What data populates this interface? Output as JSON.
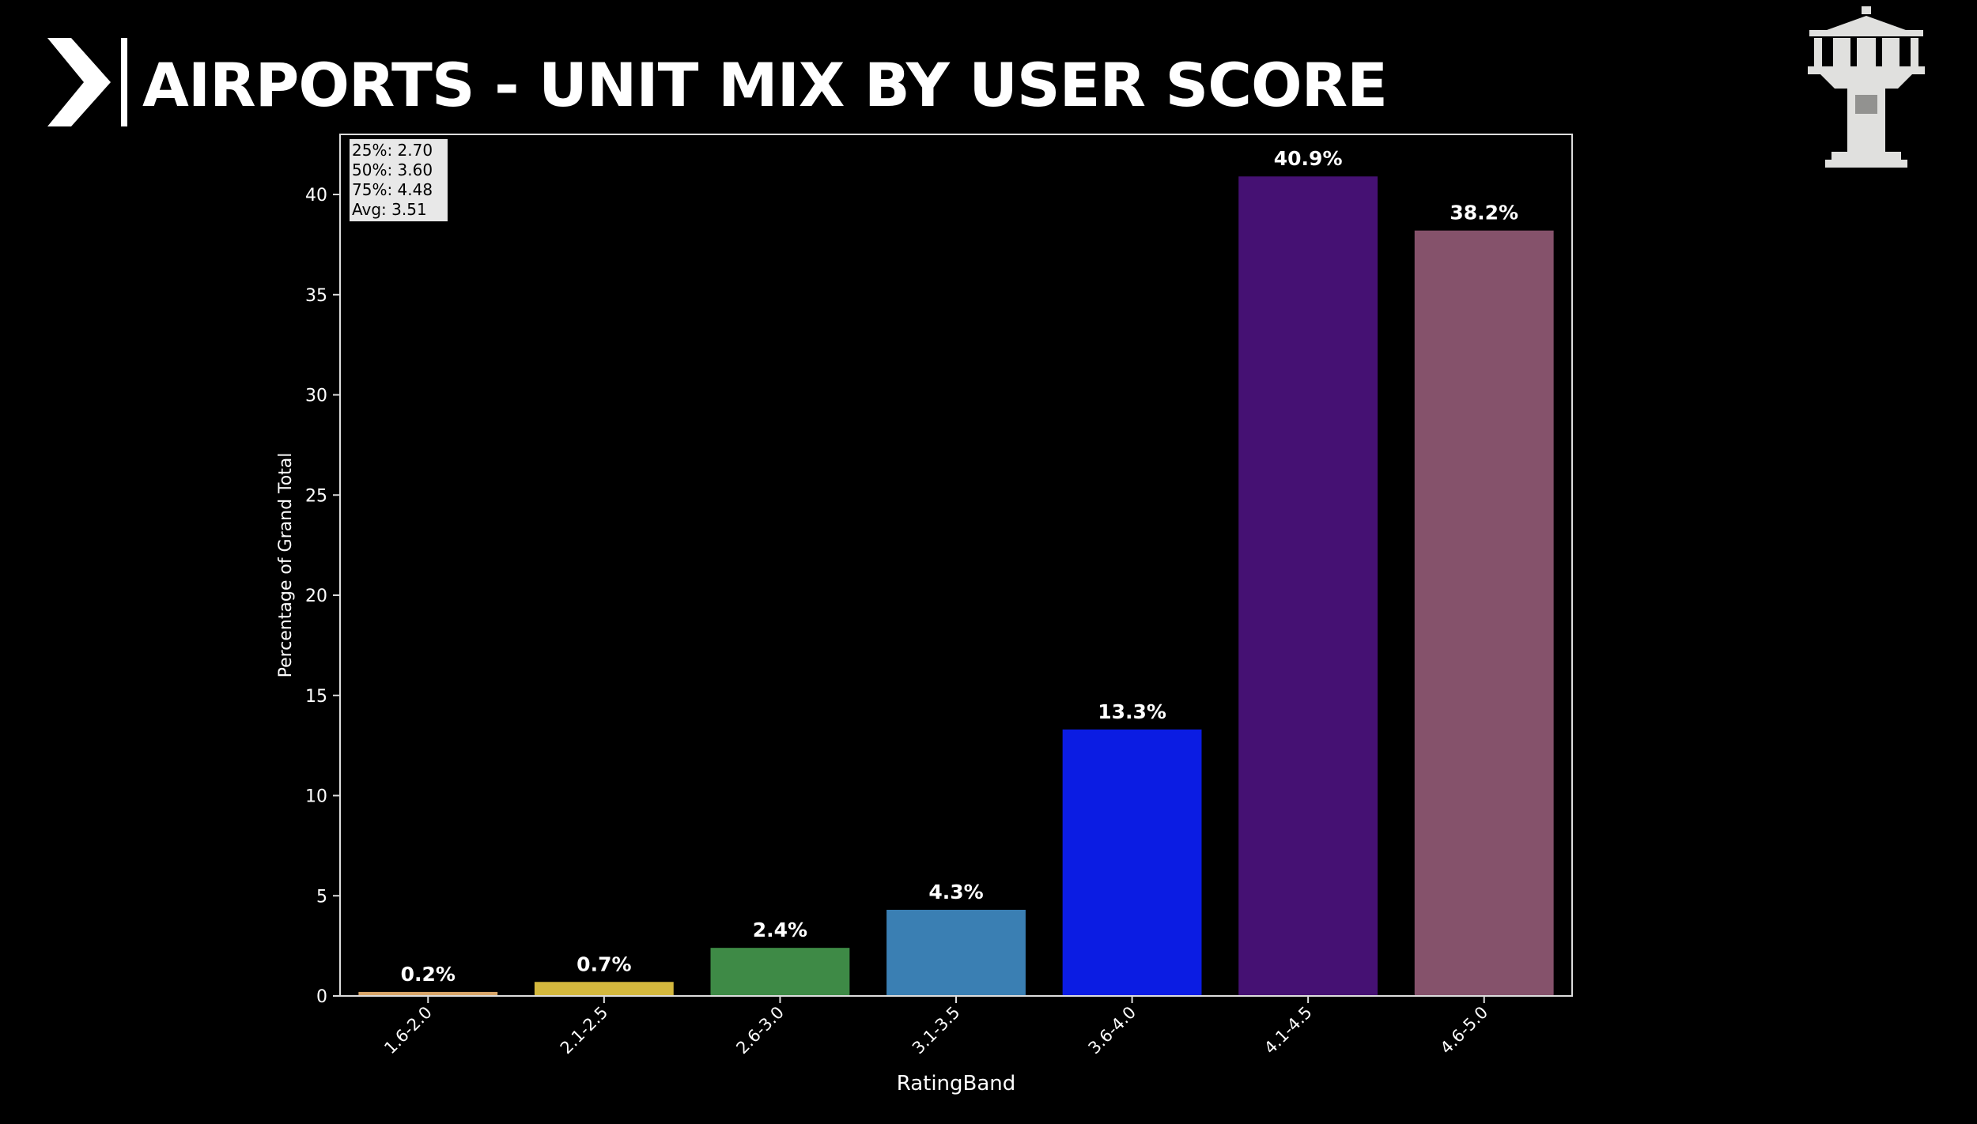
{
  "slide": {
    "title": "AIRPORTS - UNIT MIX BY USER SCORE"
  },
  "icons": {
    "brand": "chevron-right-icon",
    "logo": "control-tower-icon"
  },
  "colors": {
    "background": "#000000",
    "text": "#ffffff",
    "axis": "#dddddd",
    "stats_box": "#e8e8e8"
  },
  "stats": {
    "p25": "25%: 2.70",
    "p50": "50%: 3.60",
    "p75": "75%: 4.48",
    "avg": "Avg: 3.51"
  },
  "chart_data": {
    "type": "bar",
    "title": "",
    "xlabel": "RatingBand",
    "ylabel": "Percentage of Grand Total",
    "ylim": [
      0,
      43
    ],
    "yticks": [
      0,
      5,
      10,
      15,
      20,
      25,
      30,
      35,
      40
    ],
    "grid": false,
    "categories": [
      "1.6-2.0",
      "2.1-2.5",
      "2.6-3.0",
      "3.1-3.5",
      "3.6-4.0",
      "4.1-4.5",
      "4.6-5.0"
    ],
    "values": [
      0.2,
      0.7,
      2.4,
      4.3,
      13.3,
      40.9,
      38.2
    ],
    "data_labels": [
      "0.2%",
      "0.7%",
      "2.4%",
      "4.3%",
      "13.3%",
      "40.9%",
      "38.2%"
    ],
    "bar_colors": [
      "#d9a66a",
      "#d4b83e",
      "#3e8a46",
      "#3a7fb3",
      "#0b1ce3",
      "#451173",
      "#85526b"
    ]
  }
}
